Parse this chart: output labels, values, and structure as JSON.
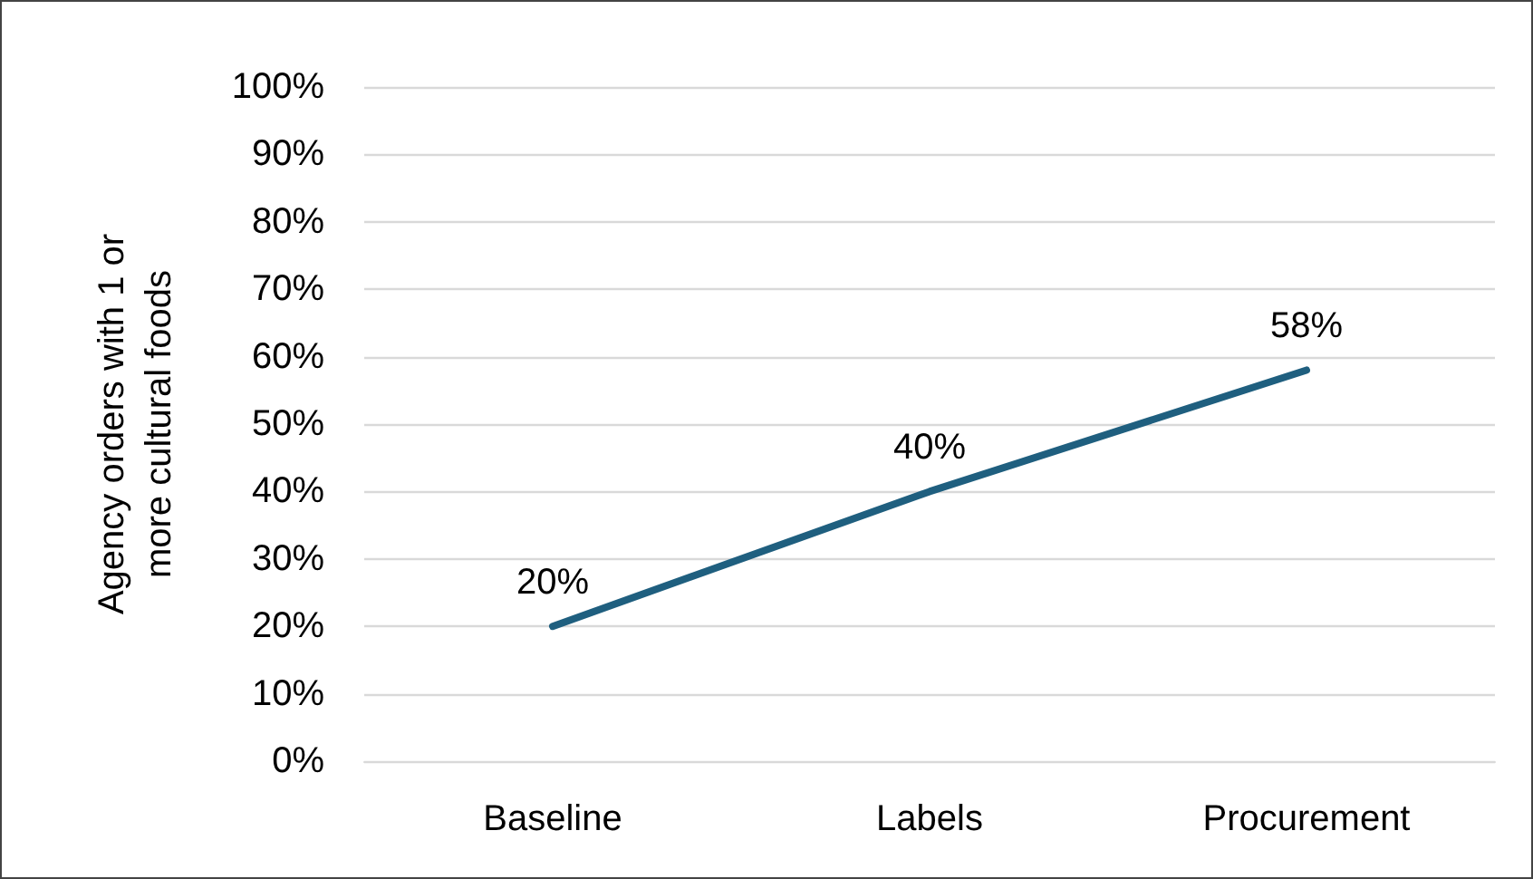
{
  "chart_data": {
    "type": "line",
    "ylabel": "Agency orders with 1 or more cultural foods",
    "categories": [
      "Baseline",
      "Labels",
      "Procurement"
    ],
    "series": [
      {
        "color": "#1f5f7f",
        "values": [
          20,
          40,
          58
        ],
        "value_labels": [
          "20%",
          "40%",
          "58%"
        ]
      }
    ],
    "ylim": [
      0,
      100
    ],
    "yticks": [
      {
        "value": 0,
        "label": "0%"
      },
      {
        "value": 10,
        "label": "10%"
      },
      {
        "value": 20,
        "label": "20%"
      },
      {
        "value": 30,
        "label": "30%"
      },
      {
        "value": 40,
        "label": "40%"
      },
      {
        "value": 50,
        "label": "50%"
      },
      {
        "value": 60,
        "label": "60%"
      },
      {
        "value": 70,
        "label": "70%"
      },
      {
        "value": 80,
        "label": "80%"
      },
      {
        "value": 90,
        "label": "90%"
      },
      {
        "value": 100,
        "label": "100%"
      }
    ],
    "grid": "y",
    "marker": "none",
    "line_style": "solid"
  }
}
